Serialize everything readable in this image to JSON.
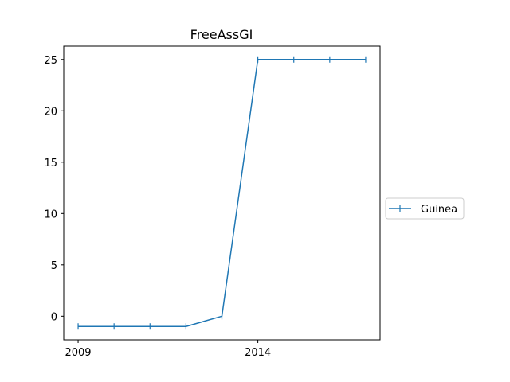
{
  "chart_data": {
    "type": "line",
    "title": "FreeAssGI",
    "xlabel": "",
    "ylabel": "",
    "x": [
      2009,
      2010,
      2011,
      2012,
      2013,
      2014,
      2015,
      2016,
      2017
    ],
    "x_ticks": [
      "2009",
      "2014"
    ],
    "y_ticks": [
      "0",
      "5",
      "10",
      "15",
      "20",
      "25"
    ],
    "xlim": [
      2008.6,
      2017.4
    ],
    "ylim": [
      -2.3,
      26.3
    ],
    "grid": false,
    "legend_position": "center-right, outside plot",
    "series": [
      {
        "name": "Guinea",
        "color": "#1f77b4",
        "marker": "|",
        "values": [
          -1,
          -1,
          -1,
          -1,
          0,
          25,
          25,
          25,
          25
        ]
      }
    ]
  }
}
